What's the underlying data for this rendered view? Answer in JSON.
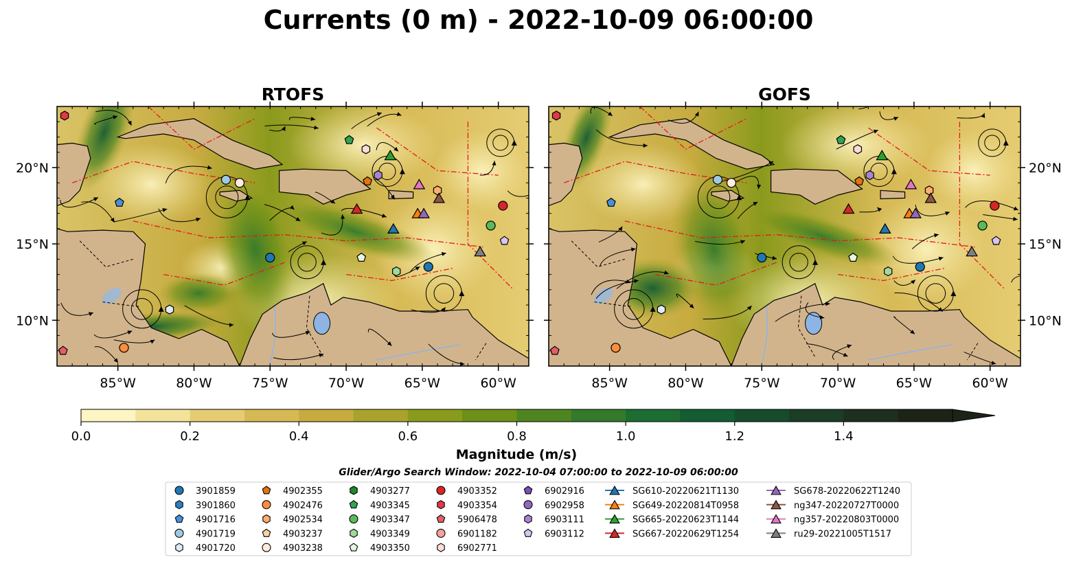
{
  "title": "Currents (0 m) - 2022-10-09 06:00:00",
  "panels": [
    {
      "title": "RTOFS",
      "model": "rtofs"
    },
    {
      "title": "GOFS",
      "model": "gofs"
    }
  ],
  "chart_data": {
    "type": "map",
    "x_range": [
      -89,
      -58
    ],
    "y_range": [
      7,
      24
    ],
    "x_ticks": [
      {
        "v": -85,
        "label": "85°W"
      },
      {
        "v": -80,
        "label": "80°W"
      },
      {
        "v": -75,
        "label": "75°W"
      },
      {
        "v": -70,
        "label": "70°W"
      },
      {
        "v": -65,
        "label": "65°W"
      },
      {
        "v": -60,
        "label": "60°W"
      }
    ],
    "y_ticks": [
      {
        "v": 10,
        "label": "10°N"
      },
      {
        "v": 15,
        "label": "15°N"
      },
      {
        "v": 20,
        "label": "20°N"
      }
    ],
    "colorbar": {
      "label": "Magnitude (m/s)",
      "min": 0.0,
      "max": 1.6,
      "extend": "max",
      "ticks": [
        {
          "v": 0.0,
          "label": "0.0"
        },
        {
          "v": 0.2,
          "label": "0.2"
        },
        {
          "v": 0.4,
          "label": "0.4"
        },
        {
          "v": 0.6,
          "label": "0.6"
        },
        {
          "v": 0.8,
          "label": "0.8"
        },
        {
          "v": 1.0,
          "label": "1.0"
        },
        {
          "v": 1.2,
          "label": "1.2"
        },
        {
          "v": 1.4,
          "label": "1.4"
        }
      ],
      "colors": [
        "#fdf5c2",
        "#f3e39a",
        "#e5cc72",
        "#d6b954",
        "#c7ab40",
        "#a9a22c",
        "#8a9a1c",
        "#6c9018",
        "#4f8520",
        "#337a2b",
        "#1d6c32",
        "#145c32",
        "#164c2c",
        "#1b3c25",
        "#1d2f1e",
        "#1c2418"
      ]
    },
    "search_window": "Glider/Argo Search Window: 2022-10-04 07:00:00 to 2022-10-09 06:00:00",
    "legend": [
      {
        "label": "3901859",
        "shape": "circle",
        "color": "#1f77b4"
      },
      {
        "label": "3901860",
        "shape": "hexagon",
        "color": "#2f7fc1"
      },
      {
        "label": "4901716",
        "shape": "pentagon",
        "color": "#4a90d9"
      },
      {
        "label": "4901719",
        "shape": "circle",
        "color": "#9ecae1"
      },
      {
        "label": "4901720",
        "shape": "hexagon",
        "color": "#deebf7"
      },
      {
        "label": "4902355",
        "shape": "pentagon",
        "color": "#e6730f"
      },
      {
        "label": "4902476",
        "shape": "circle",
        "color": "#fd8d3c"
      },
      {
        "label": "4902534",
        "shape": "hexagon",
        "color": "#fdae6b"
      },
      {
        "label": "4903237",
        "shape": "pentagon",
        "color": "#fdd0a2"
      },
      {
        "label": "4903238",
        "shape": "circle",
        "color": "#feedde"
      },
      {
        "label": "4903277",
        "shape": "hexagon",
        "color": "#1a8a2a"
      },
      {
        "label": "4903345",
        "shape": "pentagon",
        "color": "#31a354"
      },
      {
        "label": "4903347",
        "shape": "circle",
        "color": "#5ab95a"
      },
      {
        "label": "4903349",
        "shape": "hexagon",
        "color": "#a1d99b"
      },
      {
        "label": "4903350",
        "shape": "pentagon",
        "color": "#e5f5e0"
      },
      {
        "label": "4903352",
        "shape": "circle",
        "color": "#d62728"
      },
      {
        "label": "4903354",
        "shape": "hexagon",
        "color": "#de3b47"
      },
      {
        "label": "5906478",
        "shape": "pentagon",
        "color": "#e35e6a"
      },
      {
        "label": "6901182",
        "shape": "circle",
        "color": "#f4a39a"
      },
      {
        "label": "6902771",
        "shape": "hexagon",
        "color": "#fddbd7"
      },
      {
        "label": "6902916",
        "shape": "pentagon",
        "color": "#7b4fb3"
      },
      {
        "label": "6902958",
        "shape": "circle",
        "color": "#9467bd"
      },
      {
        "label": "6903111",
        "shape": "hexagon",
        "color": "#a884d0"
      },
      {
        "label": "6903112",
        "shape": "pentagon",
        "color": "#d6c5f0"
      },
      {
        "label": "SG610-20220621T1130",
        "shape": "triangle",
        "color": "#1f77b4"
      },
      {
        "label": "SG649-20220814T0958",
        "shape": "triangle",
        "color": "#ff7f0e"
      },
      {
        "label": "SG665-20220623T1144",
        "shape": "triangle",
        "color": "#2ca02c"
      },
      {
        "label": "SG667-20220629T1254",
        "shape": "triangle",
        "color": "#d62728"
      },
      {
        "label": "SG678-20220622T1240",
        "shape": "triangle",
        "color": "#9467bd"
      },
      {
        "label": "ng347-20220727T0000",
        "shape": "triangle",
        "color": "#8c564b"
      },
      {
        "label": "ng357-20220803T0000",
        "shape": "triangle",
        "color": "#e377c2"
      },
      {
        "label": "ru29-20221005T1517",
        "shape": "triangle",
        "color": "#7f7f7f"
      }
    ],
    "markers": [
      {
        "label": "4903354",
        "lon": -88.5,
        "lat": 23.4
      },
      {
        "label": "4903345",
        "lon": -69.8,
        "lat": 21.8
      },
      {
        "label": "6902771",
        "lon": -68.7,
        "lat": 21.2
      },
      {
        "label": "SG665-20220623T1144",
        "lon": -67.1,
        "lat": 20.8
      },
      {
        "label": "4901719",
        "lon": -77.9,
        "lat": 19.2
      },
      {
        "label": "4902355",
        "lon": -68.6,
        "lat": 19.1
      },
      {
        "label": "6903111",
        "lon": -67.9,
        "lat": 19.5
      },
      {
        "label": "ng357-20220803T0000",
        "lon": -65.2,
        "lat": 18.9
      },
      {
        "label": "4902534",
        "lon": -64.0,
        "lat": 18.5
      },
      {
        "label": "4901716",
        "lon": -84.9,
        "lat": 17.7
      },
      {
        "label": "ng347-20220727T0000",
        "lon": -63.9,
        "lat": 18.0
      },
      {
        "label": "4903352",
        "lon": -59.7,
        "lat": 17.5
      },
      {
        "label": "SG667-20220629T1254",
        "lon": -69.3,
        "lat": 17.3
      },
      {
        "label": "SG649-20220814T0958",
        "lon": -65.3,
        "lat": 17.0
      },
      {
        "label": "SG678-20220622T1240",
        "lon": -64.9,
        "lat": 17.0
      },
      {
        "label": "SG610-20220621T1130",
        "lon": -66.9,
        "lat": 16.0
      },
      {
        "label": "4903347",
        "lon": -60.5,
        "lat": 16.2
      },
      {
        "label": "6903112",
        "lon": -59.6,
        "lat": 15.2
      },
      {
        "label": "ru29-20221005T1517",
        "lon": -61.2,
        "lat": 14.5
      },
      {
        "label": "3901859",
        "lon": -75.0,
        "lat": 14.1
      },
      {
        "label": "4903350",
        "lon": -69.0,
        "lat": 14.1
      },
      {
        "label": "3901859",
        "lon": -64.6,
        "lat": 13.5
      },
      {
        "label": "4903349",
        "lon": -66.7,
        "lat": 13.2
      },
      {
        "label": "4901720",
        "lon": -81.6,
        "lat": 10.7
      },
      {
        "label": "5906478",
        "lon": -88.6,
        "lat": 8.0
      },
      {
        "label": "4902476",
        "lon": -84.6,
        "lat": 8.2
      },
      {
        "label": "4903238",
        "lon": -77.0,
        "lat": 19.0
      }
    ]
  }
}
